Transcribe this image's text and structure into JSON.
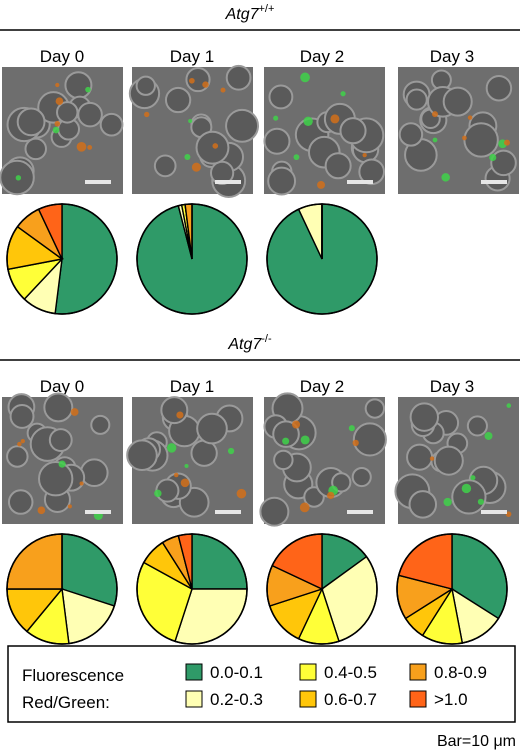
{
  "chart_data": {
    "type": "pie",
    "categories": [
      "0.0-0.1",
      "0.2-0.3",
      "0.4-0.5",
      "0.6-0.7",
      "0.8-0.9",
      ">1.0"
    ],
    "colors": [
      "#2f9a68",
      "#ffffb4",
      "#ffff38",
      "#ffc60a",
      "#f8a01c",
      "#ff6418"
    ],
    "legend_title": [
      "Fluorescence",
      "Red/Green:"
    ],
    "note": "Bar=10 μm",
    "panels": [
      {
        "genotype": {
          "gene": "Atg7",
          "sup": "+/+"
        },
        "days": [
          {
            "label": "Day 0",
            "pie": [
              52,
              10,
              10,
              13,
              8,
              7
            ]
          },
          {
            "label": "Day 1",
            "pie": [
              96,
              1,
              1,
              0,
              2,
              0
            ]
          },
          {
            "label": "Day 2",
            "pie": [
              93,
              7,
              0,
              0,
              0,
              0
            ]
          },
          {
            "label": "Day 3"
          }
        ]
      },
      {
        "genotype": {
          "gene": "Atg7",
          "sup": "-/-"
        },
        "days": [
          {
            "label": "Day 0",
            "pie": [
              30,
              18,
              13,
              14,
              25,
              0
            ]
          },
          {
            "label": "Day 1",
            "pie": [
              25,
              30,
              28,
              8,
              5,
              4
            ]
          },
          {
            "label": "Day 2",
            "pie": [
              15,
              30,
              12,
              13,
              12,
              18
            ]
          },
          {
            "label": "Day 3",
            "pie": [
              34,
              13,
              12,
              7,
              13,
              21
            ]
          }
        ]
      }
    ]
  }
}
